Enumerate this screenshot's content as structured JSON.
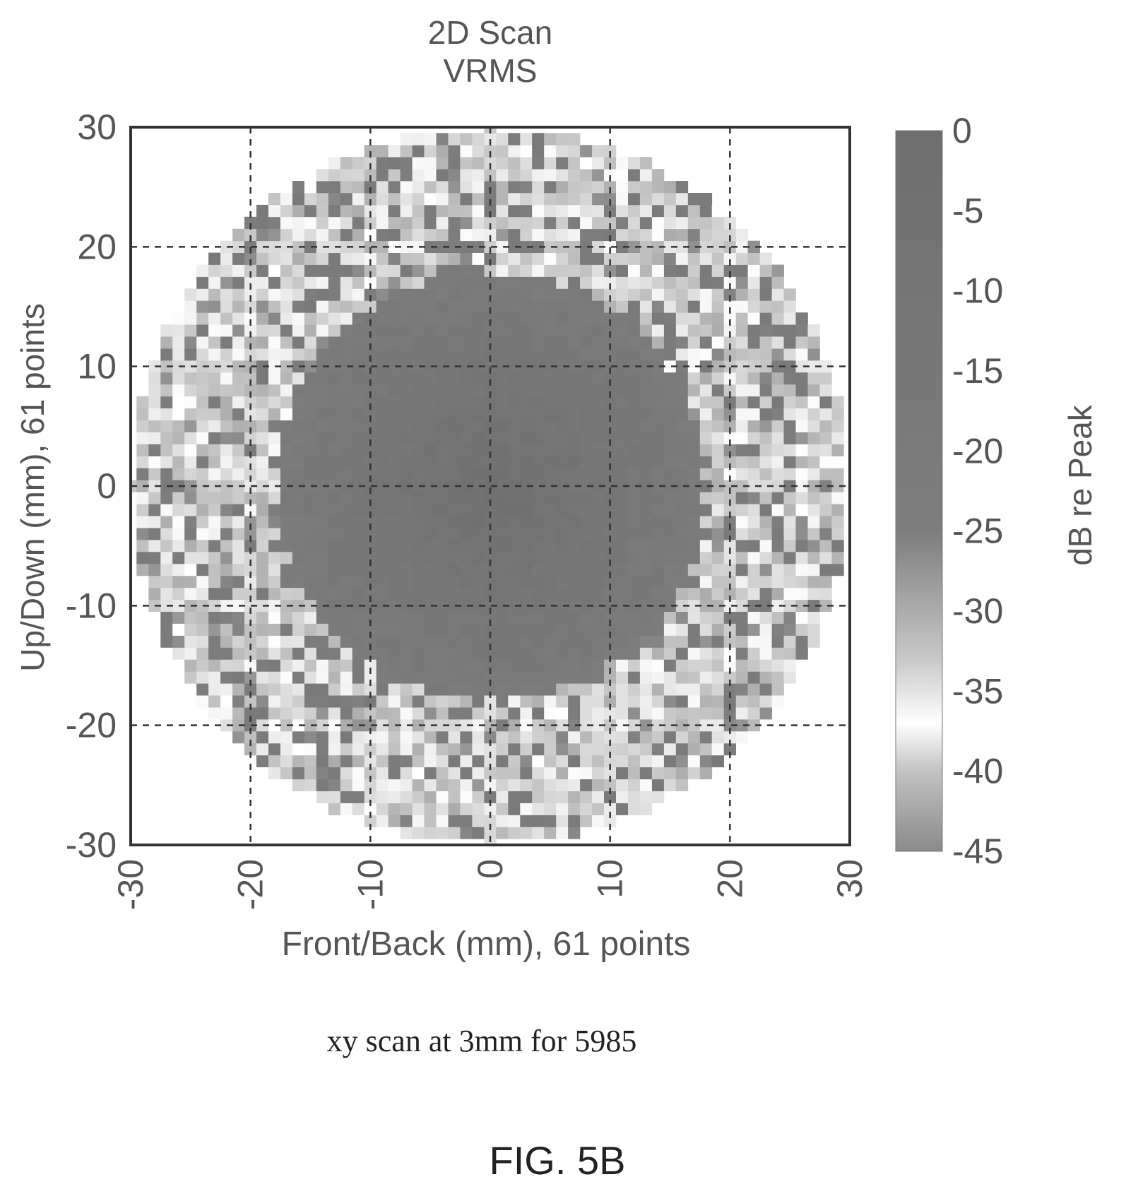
{
  "figure_label": "FIG. 5B",
  "caption": "xy scan at 3mm  for 5985",
  "chart_data": {
    "type": "heatmap",
    "title": "2D Scan",
    "subtitle": "VRMS",
    "xlabel": "Front/Back (mm), 61 points",
    "ylabel": "Up/Down (mm), 61 points",
    "xlim": [
      -30,
      30
    ],
    "ylim": [
      -30,
      30
    ],
    "x_ticks": [
      -30,
      -20,
      -10,
      0,
      10,
      20,
      30
    ],
    "y_ticks": [
      -30,
      -20,
      -10,
      0,
      10,
      20,
      30
    ],
    "grid": true,
    "grid_style": "dashed",
    "grid_points": 61,
    "colorbar": {
      "label": "dB re Peak",
      "range": [
        -45,
        0
      ],
      "ticks": [
        0,
        -5,
        -10,
        -15,
        -20,
        -25,
        -30,
        -35,
        -40,
        -45
      ],
      "stops": [
        {
          "value": 0,
          "color": "#6f6f6f"
        },
        {
          "value": -25,
          "color": "#7d7d7d"
        },
        {
          "value": -33,
          "color": "#c8c8c8"
        },
        {
          "value": -37,
          "color": "#ffffff"
        },
        {
          "value": -40,
          "color": "#c2c2c2"
        },
        {
          "value": -45,
          "color": "#8a8a8a"
        }
      ]
    },
    "field_description": {
      "active_region_radius_mm": 30,
      "core_center_mm": [
        0,
        0
      ],
      "core_radius_mm": 18,
      "peak_db": 0,
      "edge_db": -40,
      "outside_value": "no data"
    }
  }
}
